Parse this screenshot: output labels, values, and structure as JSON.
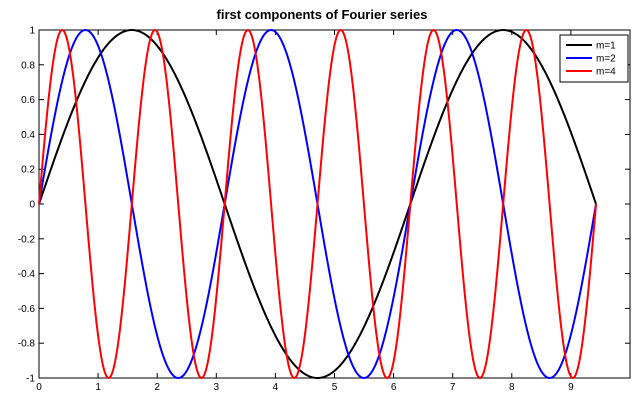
{
  "chart_data": {
    "type": "line",
    "title": "first components of Fourier series",
    "xlabel": "",
    "ylabel": "",
    "xlim": [
      0,
      10
    ],
    "ylim": [
      -1,
      1
    ],
    "x_ticks": [
      "0",
      "1",
      "2",
      "3",
      "4",
      "5",
      "6",
      "7",
      "8",
      "9"
    ],
    "y_ticks": [
      "1",
      "0.8",
      "0.6",
      "0.4",
      "0.2",
      "0",
      "-0.2",
      "-0.4",
      "-0.6",
      "-0.8",
      "-1"
    ],
    "x_range": [
      0,
      9.4248
    ],
    "grid": false,
    "legend_position": "top-right",
    "series": [
      {
        "name": "m=1",
        "color": "#000000",
        "function": "sin(1*x)",
        "m": 1
      },
      {
        "name": "m=2",
        "color": "#0000ff",
        "function": "sin(2*x)",
        "m": 2
      },
      {
        "name": "m=4",
        "color": "#ff0000",
        "function": "sin(4*x)",
        "m": 4
      }
    ]
  }
}
